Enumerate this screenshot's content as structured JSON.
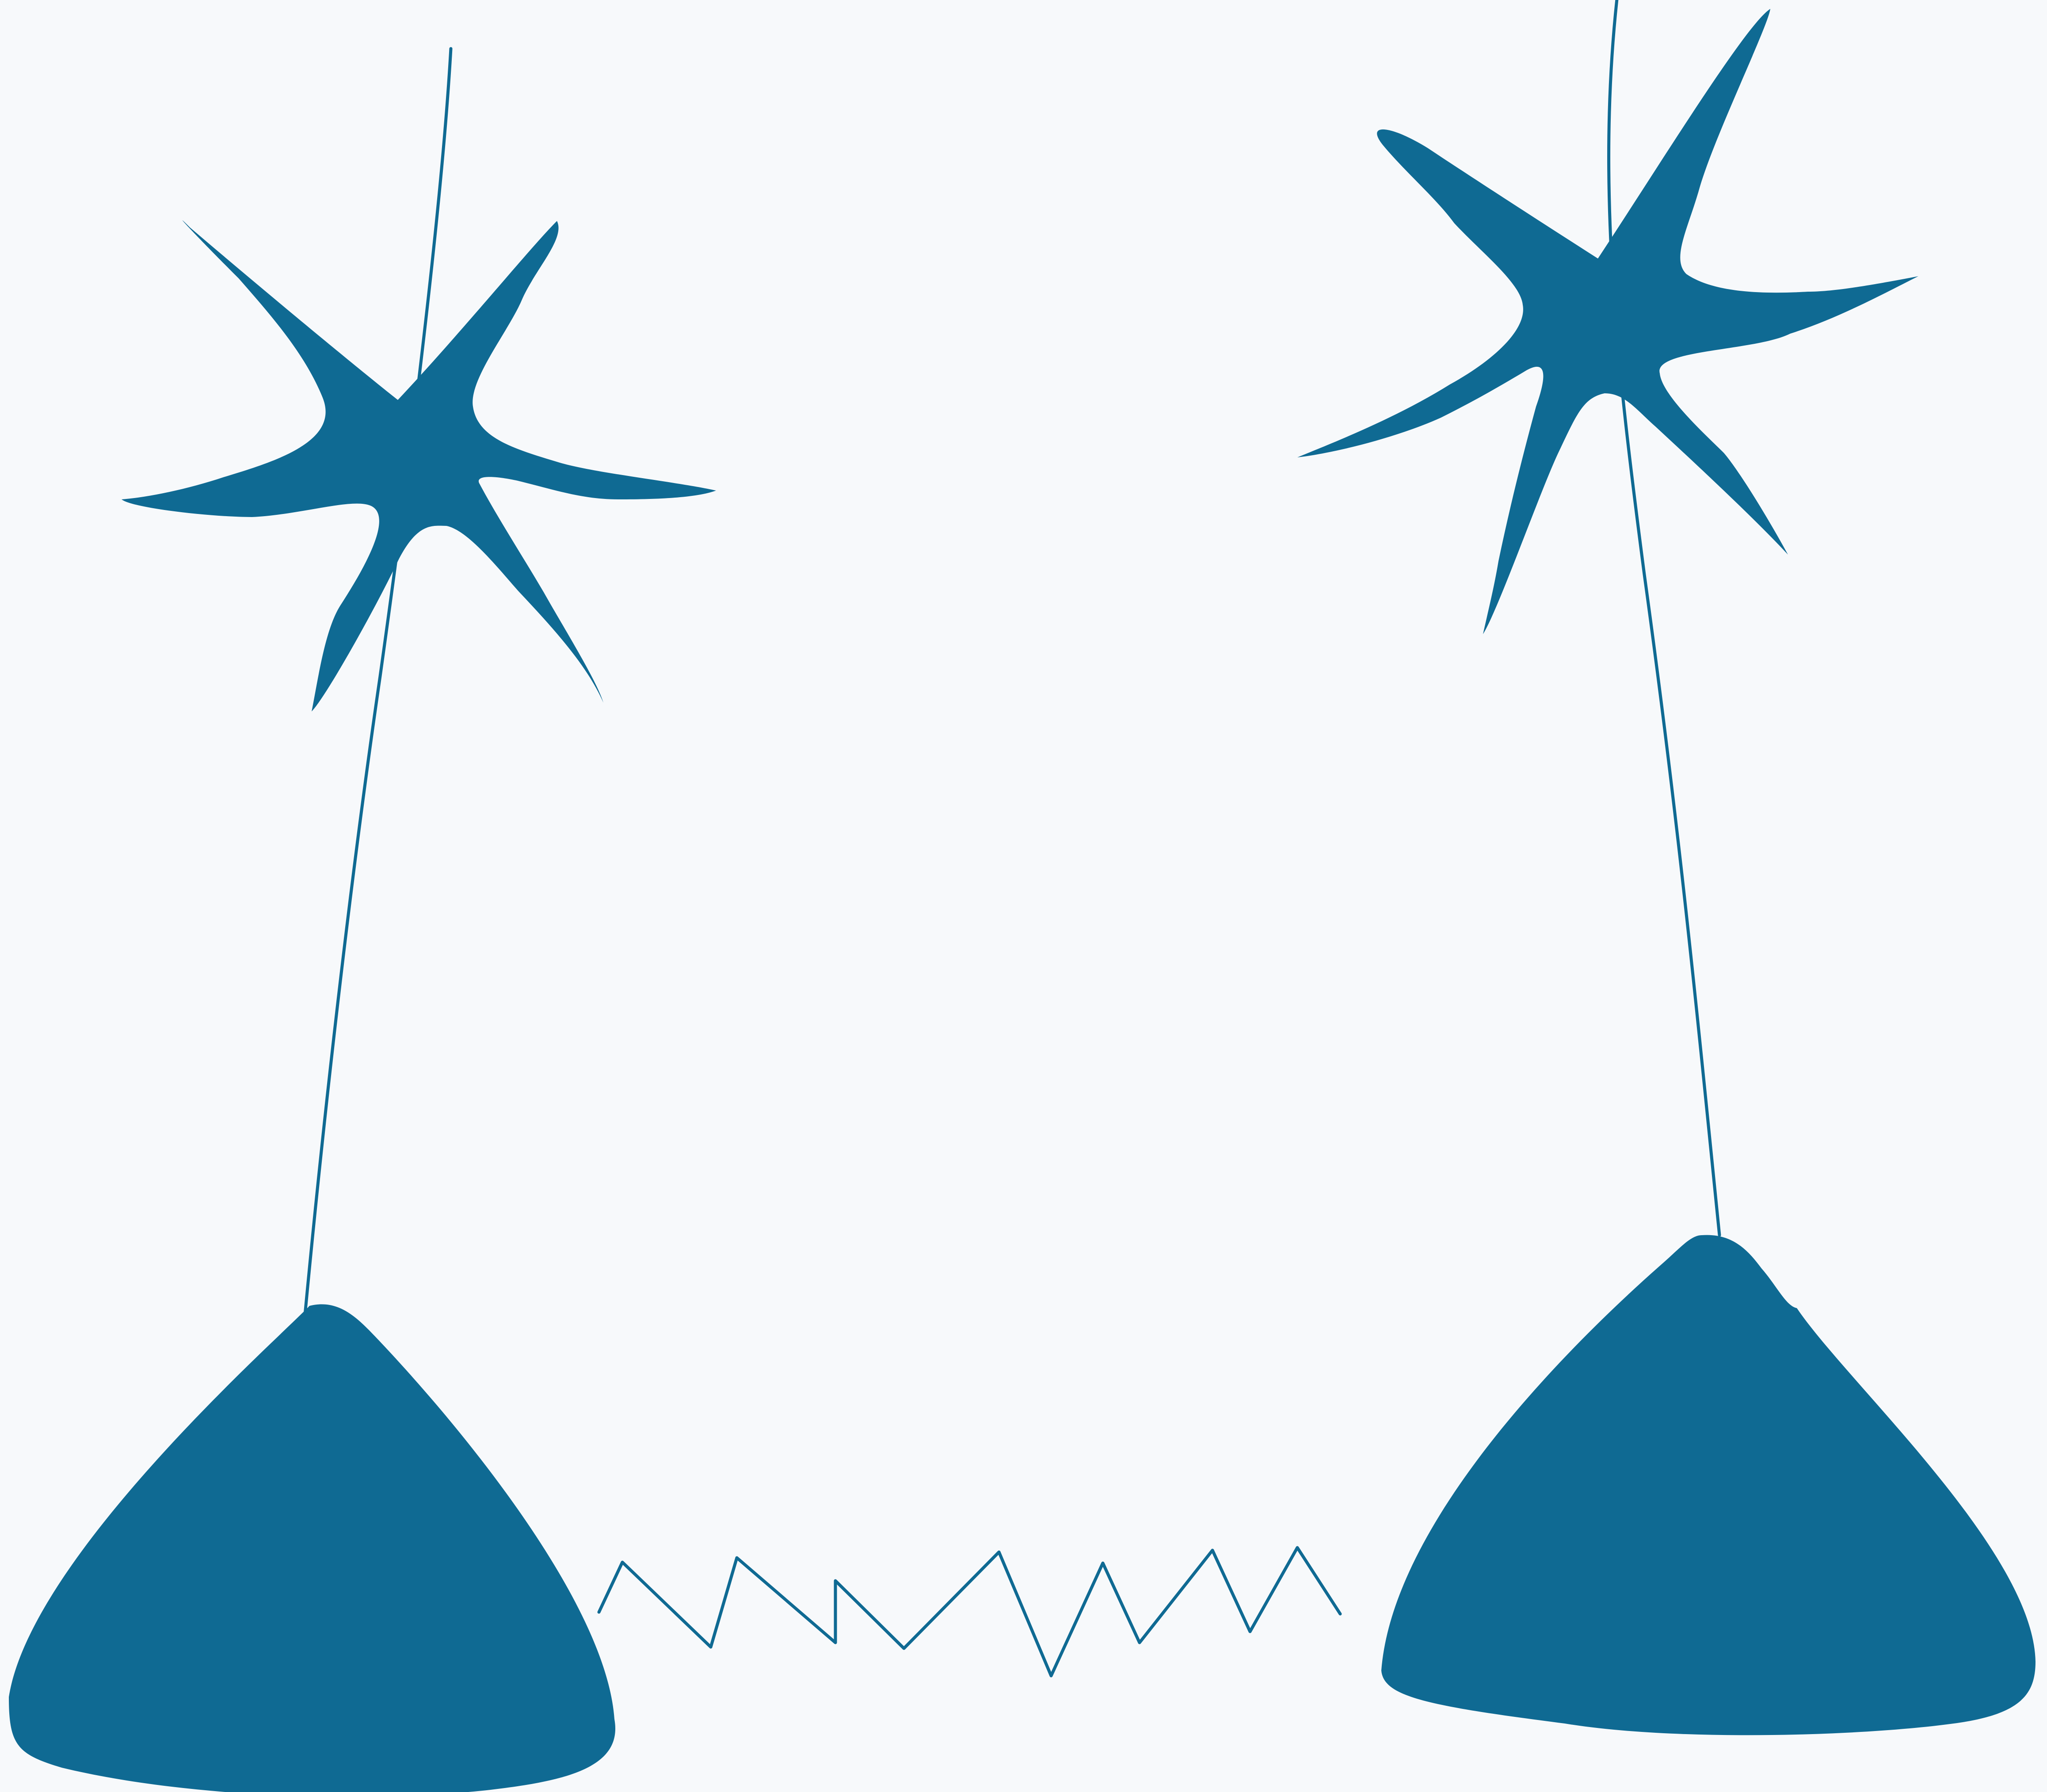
{
  "colors": {
    "background": "#f7f9fb",
    "ink": "#0f6a93"
  },
  "figure": {
    "left_antenna": {
      "base_shape": "rounded-triangle",
      "top_shape": "eight-point-star",
      "connector": "thin-line"
    },
    "right_antenna": {
      "base_shape": "rounded-triangle",
      "top_shape": "six-point-star",
      "connector": "thin-line"
    },
    "signal": {
      "shape": "zigzag-line"
    }
  }
}
